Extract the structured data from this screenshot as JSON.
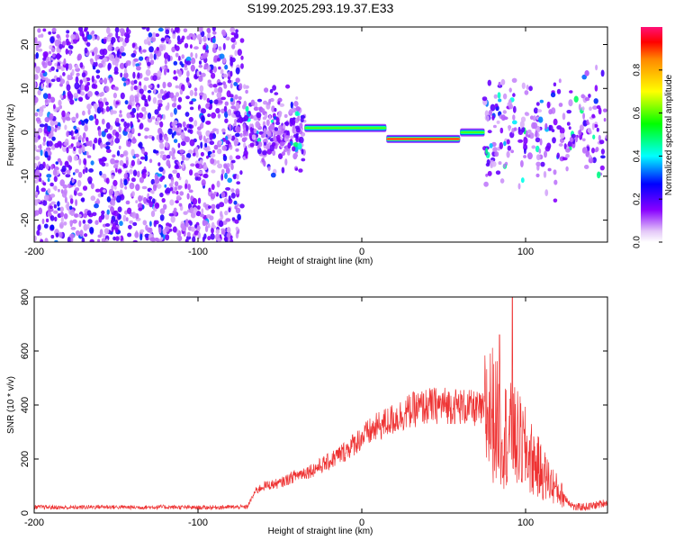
{
  "chart_data": [
    {
      "type": "heatmap",
      "title": "S199.2025.293.19.37.E33",
      "xlabel": "Height of straight line (km)",
      "ylabel": "Frequency (Hz)",
      "xlim": [
        -200,
        150
      ],
      "ylim": [
        -25,
        24
      ],
      "x_ticks": [
        -200,
        -100,
        0,
        100
      ],
      "y_ticks": [
        -20,
        -10,
        0,
        10,
        20
      ],
      "x_tick_labels": [
        "-200",
        "-100",
        "0",
        "100"
      ],
      "y_tick_labels": [
        "-20",
        "-10",
        "0",
        "10",
        "20"
      ],
      "colorbar": {
        "label": "Normalized spectral amplitude",
        "range": [
          0,
          1
        ],
        "ticks": [
          0.0,
          0.2,
          0.4,
          0.6,
          0.8
        ],
        "tick_labels": [
          "0.0",
          "0.2",
          "0.4",
          "0.6",
          "0.8"
        ]
      },
      "features": [
        {
          "name": "broadband noise",
          "x_range": [
            -200,
            -73
          ],
          "freq_range": [
            -25,
            24
          ],
          "amplitude": 0.15
        },
        {
          "name": "onset scatter",
          "x_range": [
            -72,
            -35
          ],
          "freq_range": [
            -10,
            10
          ],
          "amplitude": 0.3
        },
        {
          "name": "narrow band ridge",
          "x_range": [
            -35,
            15
          ],
          "freq_center": 1.0,
          "amplitude": 0.6
        },
        {
          "name": "peak ridge",
          "x_range": [
            15,
            60
          ],
          "freq_center": -1.5,
          "amplitude": 0.95
        },
        {
          "name": "ridge end",
          "x_range": [
            60,
            75
          ],
          "freq_center": 0,
          "amplitude": 0.6
        },
        {
          "name": "late scatter",
          "x_range": [
            75,
            150
          ],
          "freq_range": [
            -14,
            14
          ],
          "amplitude": 0.3
        }
      ]
    },
    {
      "type": "line",
      "xlabel": "Height of straight line (km)",
      "ylabel": "SNR (10 * v/v)",
      "xlim": [
        -200,
        150
      ],
      "ylim": [
        0,
        800
      ],
      "x_ticks": [
        -200,
        -100,
        0,
        100
      ],
      "y_ticks": [
        0,
        200,
        400,
        600,
        800
      ],
      "x_tick_labels": [
        "-200",
        "-100",
        "0",
        "100"
      ],
      "y_tick_labels": [
        "0",
        "200",
        "400",
        "600",
        "800"
      ],
      "color": "#ee3333",
      "series": [
        {
          "name": "SNR",
          "x": [
            -200,
            -180,
            -160,
            -140,
            -120,
            -100,
            -80,
            -70,
            -65,
            -60,
            -50,
            -40,
            -30,
            -20,
            -10,
            0,
            10,
            20,
            30,
            40,
            50,
            60,
            70,
            80,
            85,
            90,
            95,
            100,
            110,
            120,
            130,
            140,
            150
          ],
          "y": [
            22,
            20,
            23,
            21,
            22,
            20,
            22,
            22,
            80,
            100,
            110,
            140,
            160,
            190,
            230,
            280,
            320,
            350,
            380,
            395,
            400,
            395,
            385,
            370,
            300,
            290,
            270,
            230,
            150,
            80,
            20,
            25,
            40
          ],
          "peaks": [
            [
              92,
              800
            ],
            [
              84,
              660
            ]
          ]
        }
      ]
    }
  ]
}
